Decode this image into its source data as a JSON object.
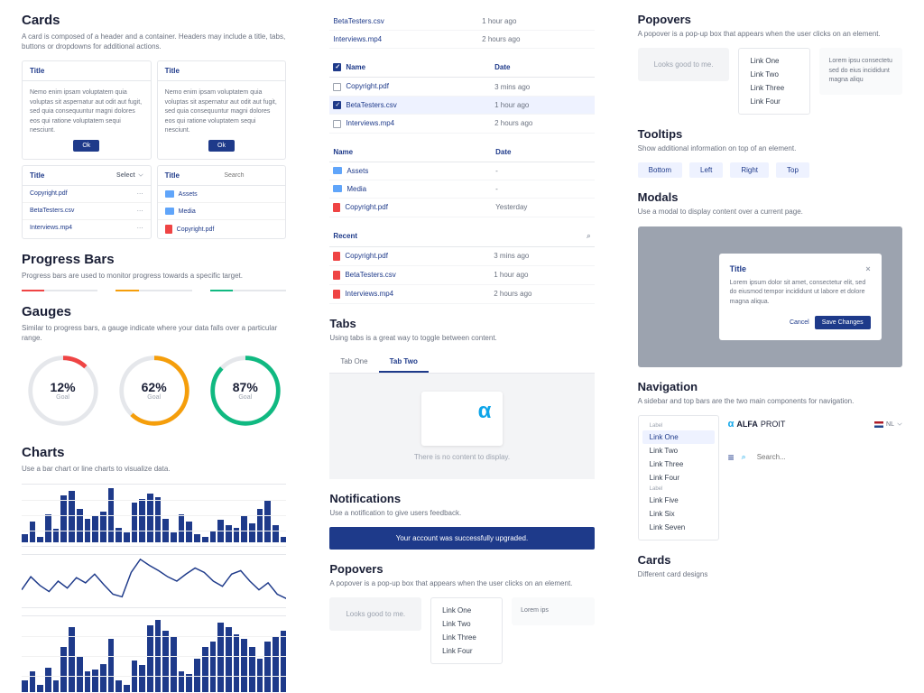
{
  "col1": {
    "cards": {
      "title": "Cards",
      "desc": "A card is composed of a header and a container. Headers may include a title, tabs, buttons or dropdowns for additional actions.",
      "title_label": "Title",
      "lorem": "Nemo enim ipsam voluptatem quia voluptas sit aspernatur aut odit aut fugit, sed quia consequuntur magni dolores eos qui ratione voluptatem sequi nesciunt.",
      "ok": "Ok",
      "select": "Select",
      "search_ph": "Search",
      "files": [
        "Copyright.pdf",
        "BetaTesters.csv",
        "Interviews.mp4"
      ],
      "folders": [
        "Assets",
        "Media"
      ],
      "folder_file": "Copyright.pdf"
    },
    "progress": {
      "title": "Progress Bars",
      "desc": "Progress bars are used to monitor progress towards a specific target.",
      "colors": [
        "#ef4444",
        "#f59e0b",
        "#10b981"
      ]
    },
    "gauges": {
      "title": "Gauges",
      "desc": "Similar to progress bars, a gauge indicate where your data falls over a particular range.",
      "items": [
        {
          "pct": "12%",
          "lbl": "Goal",
          "val": 12,
          "color": "#ef4444"
        },
        {
          "pct": "62%",
          "lbl": "Goal",
          "val": 62,
          "color": "#f59e0b"
        },
        {
          "pct": "87%",
          "lbl": "Goal",
          "val": 87,
          "color": "#10b981"
        }
      ]
    },
    "charts": {
      "title": "Charts",
      "desc": "Use a bar chart or line charts to visualize data.",
      "bars1": [
        8,
        22,
        5,
        30,
        14,
        50,
        55,
        35,
        25,
        28,
        33,
        58,
        15,
        10,
        42,
        46,
        52,
        48,
        25,
        10,
        30,
        22,
        8,
        5,
        12,
        24,
        18,
        15,
        28,
        20,
        35,
        45,
        18,
        5
      ],
      "line": [
        20,
        35,
        25,
        18,
        30,
        22,
        34,
        28,
        38,
        26,
        15,
        12,
        40,
        55,
        48,
        42,
        35,
        30,
        38,
        45,
        40,
        30,
        24,
        38,
        42,
        30,
        20,
        28,
        15,
        10
      ],
      "bars2": [
        10,
        18,
        6,
        22,
        10,
        40,
        58,
        32,
        18,
        20,
        25,
        48,
        10,
        6,
        28,
        24,
        60,
        65,
        55,
        50,
        18,
        16,
        30,
        40,
        45,
        62,
        58,
        52,
        48,
        40,
        30,
        45,
        50,
        55
      ],
      "bar_color": "#1e3a8a",
      "line_color": "#1e3a8a"
    }
  },
  "col2": {
    "table1": [
      {
        "name": "BetaTesters.csv",
        "date": "1 hour ago"
      },
      {
        "name": "Interviews.mp4",
        "date": "2 hours ago"
      }
    ],
    "table2_hd": {
      "name": "Name",
      "date": "Date"
    },
    "table2": [
      {
        "name": "Copyright.pdf",
        "date": "3 mins ago",
        "sel": false
      },
      {
        "name": "BetaTesters.csv",
        "date": "1 hour ago",
        "sel": true
      },
      {
        "name": "Interviews.mp4",
        "date": "2 hours ago",
        "sel": false
      }
    ],
    "table3": [
      {
        "name": "Assets",
        "date": "-",
        "type": "folder"
      },
      {
        "name": "Media",
        "date": "-",
        "type": "folder"
      },
      {
        "name": "Copyright.pdf",
        "date": "Yesterday",
        "type": "file"
      }
    ],
    "recent_label": "Recent",
    "recent": [
      {
        "name": "Copyright.pdf",
        "date": "3 mins ago"
      },
      {
        "name": "BetaTesters.csv",
        "date": "1 hour ago"
      },
      {
        "name": "Interviews.mp4",
        "date": "2 hours ago"
      }
    ],
    "tabs": {
      "title": "Tabs",
      "desc": "Using tabs is a great way to toggle between content.",
      "tab1": "Tab One",
      "tab2": "Tab Two",
      "empty": "There is no content to display."
    },
    "notifications": {
      "title": "Notifications",
      "desc": "Use a notification to give users feedback.",
      "msg": "Your account was successfully upgraded."
    },
    "popovers": {
      "title": "Popovers",
      "desc": "A popover is a pop-up box that appears when the user clicks on an element.",
      "btn": "Looks good to me.",
      "links": [
        "Link One",
        "Link Two",
        "Link Three",
        "Link Four"
      ],
      "lorem": "Lorem ips"
    }
  },
  "col3": {
    "popovers": {
      "title": "Popovers",
      "desc": "A popover is a pop-up box that appears when the user clicks on an element.",
      "btn": "Looks good to me.",
      "links": [
        "Link One",
        "Link Two",
        "Link Three",
        "Link Four"
      ],
      "lorem": "Lorem ipsu consectetu sed do eius incididunt magna aliqu"
    },
    "tooltips": {
      "title": "Tooltips",
      "desc": "Show additional information on top of an element.",
      "dirs": [
        "Bottom",
        "Left",
        "Right",
        "Top"
      ]
    },
    "modals": {
      "title": "Modals",
      "desc": "Use a modal to display content over a current page.",
      "modal_title": "Title",
      "modal_text": "Lorem ipsum dolor sit amet, consectetur elit, sed do eiusmod tempor incididunt ut labore et dolore magna aliqua.",
      "cancel": "Cancel",
      "save": "Save Changes"
    },
    "nav": {
      "title": "Navigation",
      "desc": "A sidebar and top bars are the two main components for navigation.",
      "label": "Label",
      "links1": [
        "Link One",
        "Link Two",
        "Link Three",
        "Link Four"
      ],
      "links2": [
        "Link Five",
        "Link Six",
        "Link Seven"
      ],
      "brand": "ALFA",
      "brand2": "PROIT",
      "lang": "NL",
      "search_ph": "Search..."
    },
    "cards2": {
      "title": "Cards",
      "desc": "Different card designs"
    }
  }
}
